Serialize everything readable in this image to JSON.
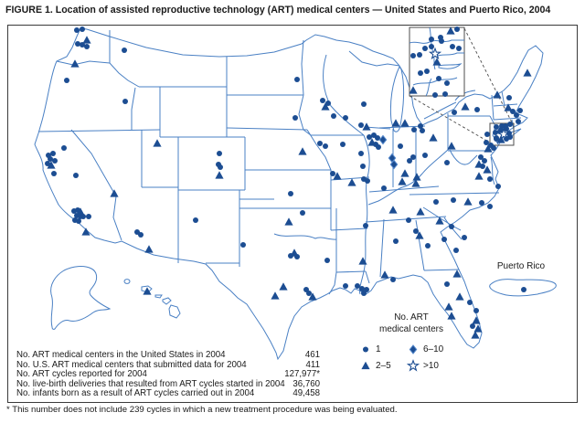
{
  "figure": {
    "title": "FIGURE 1. Location of assisted reproductive technology (ART) medical centers — United States and Puerto Rico, 2004",
    "footnote": "* This number does not include 239 cycles in which a new treatment procedure was being evaluated."
  },
  "stats": [
    {
      "label": "No. ART medical centers in the United States in 2004",
      "value": "461"
    },
    {
      "label": "No. U.S. ART medical centers that submitted data for 2004",
      "value": "411"
    },
    {
      "label": "No. ART cycles reported for 2004",
      "value": "127,977*"
    },
    {
      "label": "No. live-birth deliveries that resulted from ART cycles started in 2004",
      "value": "36,760"
    },
    {
      "label": "No. infants born as a result of ART cycles carried out in 2004",
      "value": "49,458"
    }
  ],
  "legend": {
    "title_line1": "No. ART",
    "title_line2": "medical centers",
    "items": [
      {
        "symbol": "circle",
        "label": "1"
      },
      {
        "symbol": "triangle",
        "label": "2–5"
      },
      {
        "symbol": "diamond",
        "label": "6–10"
      },
      {
        "symbol": "star",
        "label": ">10"
      }
    ]
  },
  "labels": {
    "puerto_rico": "Puerto Rico"
  },
  "colors": {
    "marker": "#1c4d92",
    "marker_light": "#5588cc",
    "map_line": "#4a80c4",
    "star_fill": "#ffffff",
    "frame": "#4d4d4d"
  },
  "map_markers": {
    "main": [
      [
        "c",
        84,
        33
      ],
      [
        "c",
        90,
        32
      ],
      [
        "t",
        95,
        44
      ],
      [
        "c",
        85,
        48
      ],
      [
        "c",
        90,
        49
      ],
      [
        "c",
        95,
        51
      ],
      [
        "c",
        136,
        55
      ],
      [
        "t",
        82,
        70
      ],
      [
        "c",
        73,
        88
      ],
      [
        "c",
        137,
        111
      ],
      [
        "c",
        70,
        162
      ],
      [
        "c",
        53,
        170
      ],
      [
        "c",
        58,
        168
      ],
      [
        "c",
        55,
        174
      ],
      [
        "c",
        60,
        176
      ],
      [
        "t",
        56,
        181
      ],
      [
        "c",
        52,
        179
      ],
      [
        "c",
        59,
        190
      ],
      [
        "c",
        83,
        192
      ],
      [
        "c",
        81,
        231
      ],
      [
        "c",
        85,
        230
      ],
      [
        "c",
        84,
        236
      ],
      [
        "c",
        88,
        237
      ],
      [
        "c",
        82,
        241
      ],
      [
        "c",
        86,
        242
      ],
      [
        "c",
        91,
        237
      ],
      [
        "c",
        97,
        237
      ],
      [
        "t",
        88,
        232
      ],
      [
        "t",
        94,
        254
      ],
      [
        "t",
        125,
        212
      ],
      [
        "t",
        172,
        157
      ],
      [
        "c",
        150,
        254
      ],
      [
        "c",
        154,
        257
      ],
      [
        "t",
        163,
        273
      ],
      [
        "c",
        214,
        241
      ],
      [
        "c",
        240,
        168
      ],
      [
        "c",
        239,
        180
      ],
      [
        "c",
        241,
        183
      ],
      [
        "t",
        240,
        192
      ],
      [
        "c",
        325,
        87
      ],
      [
        "c",
        323,
        129
      ],
      [
        "c",
        353,
        110
      ],
      [
        "c",
        359,
        113
      ],
      [
        "t",
        356,
        117
      ],
      [
        "c",
        365,
        127
      ],
      [
        "c",
        378,
        129
      ],
      [
        "c",
        398,
        114
      ],
      [
        "c",
        395,
        137
      ],
      [
        "t",
        401,
        139
      ],
      [
        "t",
        331,
        166
      ],
      [
        "c",
        350,
        157
      ],
      [
        "c",
        356,
        160
      ],
      [
        "c",
        375,
        158
      ],
      [
        "c",
        318,
        212
      ],
      [
        "t",
        369,
        193
      ],
      [
        "c",
        364,
        190
      ],
      [
        "t",
        385,
        200
      ],
      [
        "c",
        398,
        196
      ],
      [
        "c",
        402,
        198
      ],
      [
        "t",
        316,
        243
      ],
      [
        "c",
        331,
        233
      ],
      [
        "c",
        358,
        285
      ],
      [
        "c",
        266,
        268
      ],
      [
        "t",
        322,
        277
      ],
      [
        "c",
        318,
        280
      ],
      [
        "c",
        325,
        281
      ],
      [
        "t",
        310,
        314
      ],
      [
        "t",
        301,
        324
      ],
      [
        "c",
        335,
        317
      ],
      [
        "c",
        338,
        321
      ],
      [
        "t",
        342,
        325
      ],
      [
        "c",
        378,
        313
      ],
      [
        "c",
        391,
        313
      ],
      [
        "c",
        396,
        316
      ],
      [
        "c",
        401,
        317
      ],
      [
        "c",
        398,
        321
      ],
      [
        "t",
        397,
        286
      ],
      [
        "c",
        395,
        168
      ],
      [
        "c",
        397,
        182
      ],
      [
        "c",
        404,
        150
      ],
      [
        "c",
        409,
        148
      ],
      [
        "c",
        413,
        151
      ],
      [
        "t",
        407,
        156
      ],
      [
        "c",
        411,
        158
      ],
      [
        "c",
        414,
        161
      ],
      [
        "d",
        419,
        153
      ],
      [
        "c",
        438,
        160
      ],
      [
        "d",
        429,
        173
      ],
      [
        "d",
        431,
        180
      ],
      [
        "c",
        452,
        172
      ],
      [
        "t",
        443,
        190
      ],
      [
        "t",
        433,
        135
      ],
      [
        "t",
        443,
        135
      ],
      [
        "c",
        453,
        142
      ],
      [
        "c",
        460,
        138
      ],
      [
        "c",
        462,
        143
      ],
      [
        "t",
        474,
        151
      ],
      [
        "c",
        465,
        170
      ],
      [
        "t",
        456,
        194
      ],
      [
        "c",
        448,
        176
      ],
      [
        "t",
        440,
        199
      ],
      [
        "t",
        455,
        201
      ],
      [
        "c",
        420,
        206
      ],
      [
        "t",
        430,
        230
      ],
      [
        "t",
        460,
        232
      ],
      [
        "c",
        447,
        241
      ],
      [
        "c",
        400,
        247
      ],
      [
        "c",
        489,
        178
      ],
      [
        "t",
        524,
        193
      ],
      [
        "c",
        536,
        196
      ],
      [
        "c",
        545,
        204
      ],
      [
        "c",
        477,
        221
      ],
      [
        "c",
        496,
        219
      ],
      [
        "t",
        512,
        221
      ],
      [
        "c",
        527,
        222
      ],
      [
        "c",
        536,
        226
      ],
      [
        "t",
        481,
        242
      ],
      [
        "c",
        494,
        248
      ],
      [
        "c",
        508,
        260
      ],
      [
        "c",
        455,
        253
      ],
      [
        "t",
        459,
        258
      ],
      [
        "c",
        468,
        269
      ],
      [
        "c",
        486,
        262
      ],
      [
        "c",
        499,
        274
      ],
      [
        "c",
        433,
        264
      ],
      [
        "t",
        421,
        301
      ],
      [
        "c",
        430,
        306
      ],
      [
        "t",
        500,
        300
      ],
      [
        "c",
        489,
        311
      ],
      [
        "t",
        503,
        325
      ],
      [
        "c",
        514,
        331
      ],
      [
        "t",
        491,
        336
      ],
      [
        "t",
        494,
        346
      ],
      [
        "c",
        521,
        340
      ],
      [
        "t",
        521,
        351
      ],
      [
        "c",
        517,
        357
      ],
      [
        "t",
        523,
        360
      ],
      [
        "t",
        520,
        367
      ],
      [
        "t",
        494,
        160
      ],
      [
        "c",
        532,
        156
      ],
      [
        "c",
        537,
        159
      ],
      [
        "t",
        534,
        163
      ],
      [
        "c",
        540,
        162
      ],
      [
        "c",
        497,
        123
      ],
      [
        "t",
        509,
        117
      ],
      [
        "c",
        522,
        120
      ],
      [
        "c",
        533,
        147
      ],
      [
        "c",
        526,
        172
      ],
      [
        "c",
        530,
        176
      ],
      [
        "t",
        524,
        180
      ],
      [
        "c",
        528,
        182
      ],
      [
        "t",
        533,
        186
      ],
      [
        "c",
        543,
        152
      ],
      [
        "t",
        577,
        80
      ],
      [
        "t",
        544,
        104
      ],
      [
        "c",
        557,
        107
      ],
      [
        "t",
        556,
        118
      ],
      [
        "c",
        561,
        122
      ],
      [
        "c",
        565,
        126
      ],
      [
        "c",
        569,
        121
      ],
      [
        "c",
        567,
        133
      ],
      [
        "c",
        553,
        138
      ],
      [
        "c",
        558,
        136
      ],
      [
        "t",
        548,
        141
      ],
      [
        "c",
        543,
        139
      ],
      [
        "c",
        549,
        138
      ],
      [
        "c",
        554,
        141
      ],
      [
        "c",
        542,
        145
      ],
      [
        "c",
        547,
        144
      ],
      [
        "s",
        551,
        147
      ],
      [
        "c",
        557,
        146
      ],
      [
        "c",
        543,
        151
      ],
      [
        "t",
        548,
        153
      ],
      [
        "c",
        554,
        152
      ],
      [
        "c",
        558,
        150
      ],
      [
        "t",
        161,
        319
      ],
      [
        "c",
        573,
        317
      ]
    ],
    "inset": [
      [
        "c",
        472,
        43
      ],
      [
        "c",
        482,
        41
      ],
      [
        "t",
        493,
        34
      ],
      [
        "c",
        500,
        32
      ],
      [
        "c",
        483,
        45
      ],
      [
        "c",
        465,
        53
      ],
      [
        "c",
        472,
        51
      ],
      [
        "c",
        495,
        51
      ],
      [
        "c",
        502,
        53
      ],
      [
        "s",
        476,
        59
      ],
      [
        "c",
        452,
        61
      ],
      [
        "c",
        459,
        60
      ],
      [
        "t",
        478,
        68
      ],
      [
        "c",
        460,
        80
      ],
      [
        "c",
        467,
        78
      ],
      [
        "c",
        480,
        86
      ],
      [
        "c",
        489,
        91
      ],
      [
        "t",
        452,
        99
      ],
      [
        "c",
        476,
        104
      ],
      [
        "c",
        487,
        103
      ]
    ]
  }
}
